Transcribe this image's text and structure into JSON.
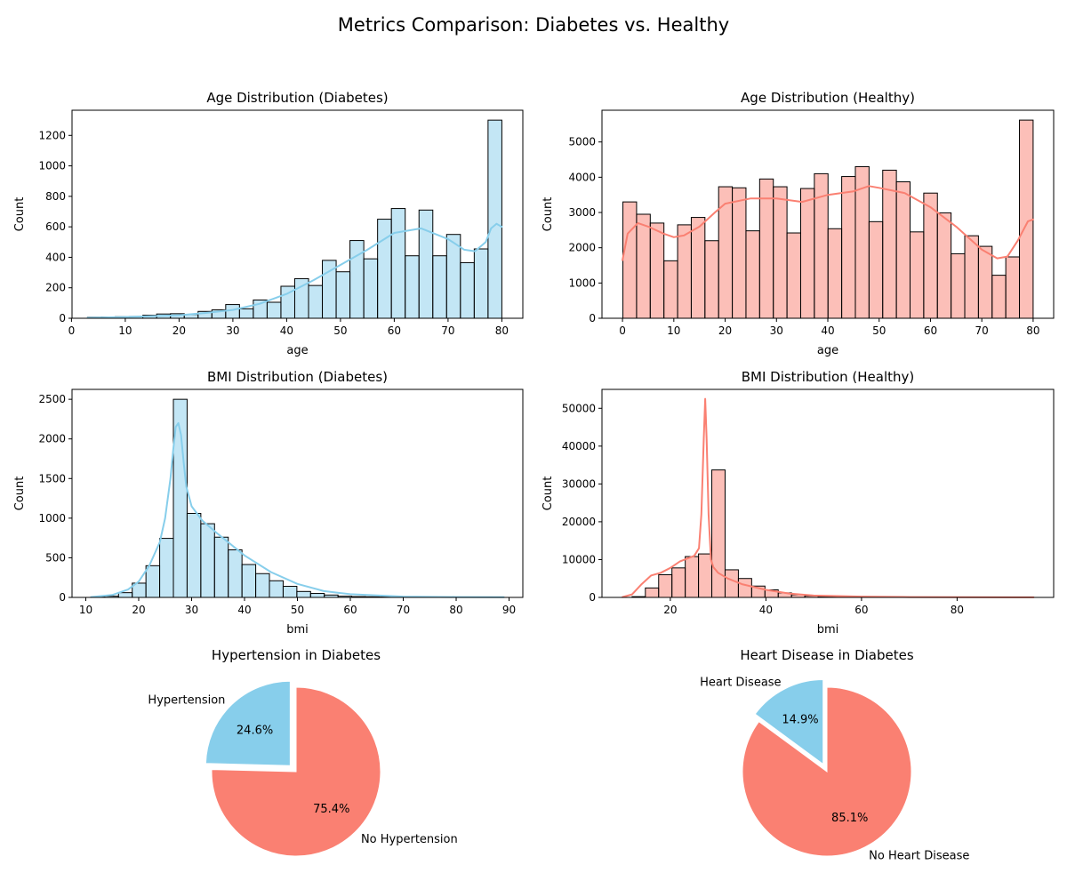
{
  "suptitle": "Metrics Comparison: Diabetes vs. Healthy",
  "colors": {
    "diabetes": "#87CEEB",
    "healthy": "#FA8072"
  },
  "chart_data": [
    {
      "id": "age-diabetes",
      "type": "histogram",
      "title": "Age Distribution (Diabetes)",
      "xlabel": "age",
      "ylabel": "Count",
      "xlim": [
        0.1,
        83.9
      ],
      "ylim": [
        0,
        1365
      ],
      "xticks": [
        0,
        10,
        20,
        30,
        40,
        50,
        60,
        70,
        80
      ],
      "yticks": [
        0,
        200,
        400,
        600,
        800,
        1000,
        1200
      ],
      "bin_start": 3,
      "bin_width": 2.5667,
      "values": [
        7,
        8,
        10,
        12,
        20,
        28,
        30,
        25,
        45,
        55,
        90,
        62,
        120,
        105,
        210,
        260,
        215,
        380,
        305,
        510,
        390,
        650,
        720,
        410,
        710,
        410,
        550,
        365,
        455,
        1300
      ],
      "kde_x": [
        3,
        10,
        20,
        25,
        30,
        35,
        40,
        45,
        50,
        55,
        60,
        65,
        70,
        73,
        75,
        77,
        78,
        79,
        80
      ],
      "kde_y": [
        3,
        8,
        20,
        35,
        55,
        95,
        160,
        250,
        350,
        450,
        560,
        590,
        520,
        450,
        440,
        500,
        590,
        620,
        600
      ],
      "color": "#87CEEB",
      "fill": "rgba(135,206,235,0.5)"
    },
    {
      "id": "age-healthy",
      "type": "histogram",
      "title": "Age Distribution (Healthy)",
      "xlabel": "age",
      "ylabel": "Count",
      "xlim": [
        -4.0,
        84.0
      ],
      "ylim": [
        0,
        5900
      ],
      "xticks": [
        0,
        10,
        20,
        30,
        40,
        50,
        60,
        70,
        80
      ],
      "yticks": [
        0,
        1000,
        2000,
        3000,
        4000,
        5000
      ],
      "bin_start": 0.08,
      "bin_width": 2.664,
      "values": [
        3300,
        2950,
        2700,
        1630,
        2650,
        2860,
        2200,
        3730,
        3700,
        2480,
        3950,
        3730,
        2420,
        3680,
        4100,
        2540,
        4020,
        4300,
        2740,
        4200,
        3870,
        2450,
        3550,
        2990,
        1830,
        2340,
        2040,
        1220,
        1740,
        5620
      ],
      "kde_x": [
        0,
        1,
        3,
        5,
        8,
        10,
        12,
        15,
        18,
        20,
        25,
        30,
        35,
        40,
        45,
        48,
        50,
        55,
        60,
        65,
        70,
        73,
        75,
        77,
        79,
        80
      ],
      "kde_y": [
        1650,
        2400,
        2700,
        2600,
        2400,
        2300,
        2350,
        2600,
        3000,
        3250,
        3400,
        3400,
        3300,
        3500,
        3600,
        3750,
        3700,
        3550,
        3150,
        2600,
        1950,
        1700,
        1750,
        2200,
        2750,
        2800
      ],
      "color": "#FA8072",
      "fill": "rgba(250,128,114,0.5)"
    },
    {
      "id": "bmi-diabetes",
      "type": "histogram",
      "title": "BMI Distribution (Diabetes)",
      "xlabel": "bmi",
      "ylabel": "Count",
      "xlim": [
        7.4,
        92.6
      ],
      "ylim": [
        0,
        2625
      ],
      "xticks": [
        10,
        20,
        30,
        40,
        50,
        60,
        70,
        80,
        90
      ],
      "yticks": [
        0,
        500,
        1000,
        1500,
        2000,
        2500
      ],
      "bin_start": 11.0,
      "bin_width": 2.593,
      "values": [
        5,
        15,
        60,
        180,
        400,
        745,
        2500,
        1060,
        930,
        760,
        600,
        415,
        300,
        210,
        140,
        75,
        50,
        30,
        15,
        10,
        8,
        5,
        4,
        3,
        2,
        2,
        1,
        1,
        1,
        1
      ],
      "kde_x": [
        11,
        15,
        18,
        20,
        22,
        24,
        25,
        26,
        26.5,
        27,
        27.5,
        28,
        28.5,
        29,
        30,
        32,
        35,
        40,
        45,
        50,
        55,
        60,
        70,
        80,
        89
      ],
      "kde_y": [
        5,
        30,
        100,
        200,
        400,
        700,
        1000,
        1500,
        1850,
        2150,
        2200,
        2050,
        1700,
        1400,
        1150,
        970,
        800,
        530,
        320,
        170,
        80,
        40,
        10,
        5,
        2
      ],
      "color": "#87CEEB",
      "fill": "rgba(135,206,235,0.5)"
    },
    {
      "id": "bmi-healthy",
      "type": "histogram",
      "title": "BMI Distribution (Healthy)",
      "xlabel": "bmi",
      "ylabel": "Count",
      "xlim": [
        5.7,
        100.2
      ],
      "ylim": [
        0,
        55000
      ],
      "xticks": [
        20,
        40,
        60,
        80
      ],
      "yticks": [
        0,
        10000,
        20000,
        30000,
        40000,
        50000
      ],
      "bin_start": 12.0,
      "bin_width": 2.78,
      "values": [
        200,
        2500,
        6000,
        7800,
        10800,
        11500,
        33700,
        7300,
        5000,
        3000,
        2000,
        1200,
        700,
        400,
        250,
        150,
        100,
        70,
        50,
        40,
        30,
        20,
        15,
        10,
        8,
        6,
        5,
        4,
        3,
        2
      ],
      "kde_x": [
        10,
        12,
        14,
        16,
        18,
        20,
        22,
        24,
        25,
        26,
        26.5,
        27,
        27.3,
        27.6,
        28,
        28.5,
        29,
        30,
        32,
        35,
        40,
        45,
        50,
        60,
        70,
        80,
        96
      ],
      "kde_y": [
        100,
        800,
        3500,
        5800,
        6500,
        7800,
        9500,
        10500,
        11000,
        13000,
        22000,
        42000,
        52500,
        42000,
        22000,
        10000,
        8000,
        6500,
        5000,
        3500,
        2000,
        1000,
        500,
        200,
        100,
        50,
        20
      ],
      "color": "#FA8072",
      "fill": "rgba(250,128,114,0.5)"
    },
    {
      "id": "hypertension-pie",
      "type": "pie",
      "title": "Hypertension in Diabetes",
      "labels": [
        "Hypertension",
        "No Hypertension"
      ],
      "values": [
        24.6,
        75.4
      ],
      "pct_labels": [
        "24.6%",
        "75.4%"
      ],
      "colors": [
        "#87CEEB",
        "#FA8072"
      ],
      "explode": [
        0.1,
        0
      ],
      "startangle": 90
    },
    {
      "id": "heart-disease-pie",
      "type": "pie",
      "title": "Heart Disease in Diabetes",
      "labels": [
        "Heart Disease",
        "No Heart Disease"
      ],
      "values": [
        14.9,
        85.1
      ],
      "pct_labels": [
        "14.9%",
        "85.1%"
      ],
      "colors": [
        "#87CEEB",
        "#FA8072"
      ],
      "explode": [
        0.1,
        0
      ],
      "startangle": 90
    }
  ]
}
